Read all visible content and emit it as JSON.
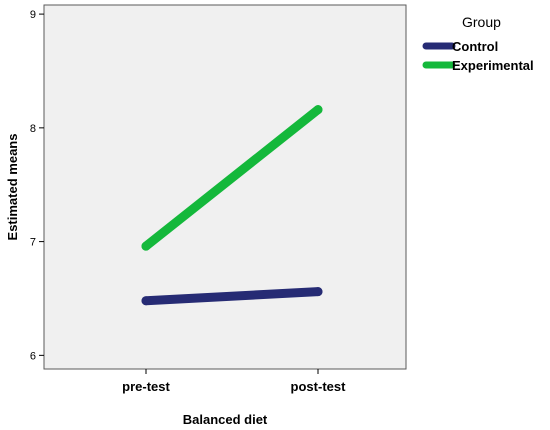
{
  "chart_data": {
    "type": "line",
    "categories": [
      "pre-test",
      "post-test"
    ],
    "series": [
      {
        "name": "Control",
        "values": [
          6.48,
          6.56
        ],
        "color": "#262b74"
      },
      {
        "name": "Experimental",
        "values": [
          6.96,
          8.16
        ],
        "color": "#14b83b"
      }
    ],
    "xlabel": "Balanced diet",
    "ylabel": "Estimated means",
    "ylim": [
      5.88,
      9.08
    ],
    "yticks": [
      6,
      7,
      8,
      9
    ],
    "grid": false,
    "legend": {
      "title": "Group",
      "position": "top-right"
    },
    "background": "#f0f0f0"
  }
}
